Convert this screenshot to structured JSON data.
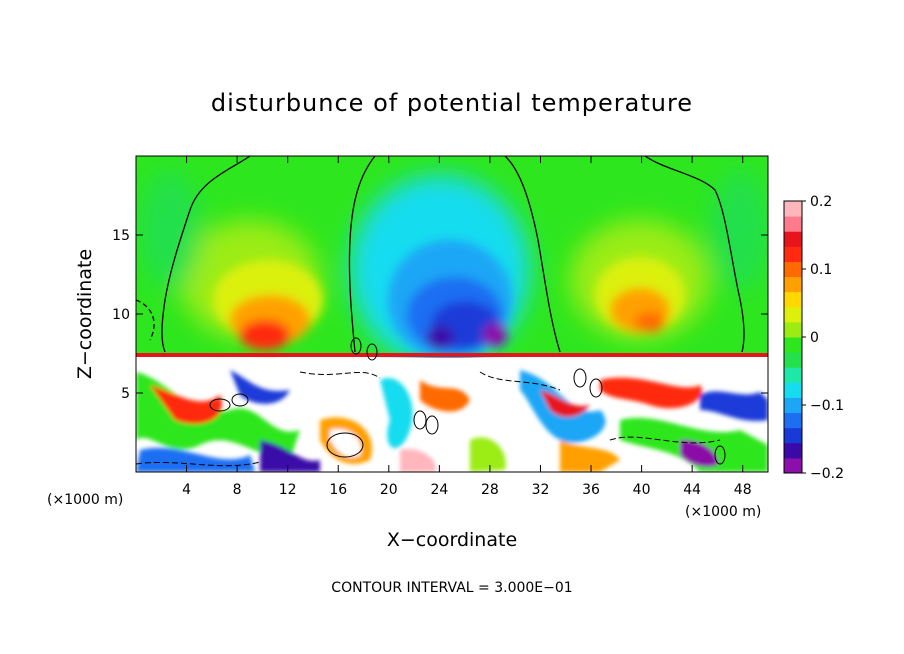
{
  "chart_data": {
    "type": "heatmap",
    "title": "disturbunce of potential temperature",
    "xlabel": "X−coordinate",
    "ylabel": "Z−coordinate",
    "x_unit": "(×1000 m)",
    "z_unit": "(×1000 m)",
    "xlim": [
      0,
      50
    ],
    "ylim": [
      0,
      20
    ],
    "x_ticks": [
      4,
      8,
      12,
      16,
      20,
      24,
      28,
      32,
      36,
      40,
      44,
      48
    ],
    "x_tick_labels": [
      "4",
      "8",
      "12",
      "16",
      "20",
      "24",
      "28",
      "32",
      "36",
      "40",
      "44",
      "48"
    ],
    "y_ticks": [
      5,
      10,
      15
    ],
    "y_tick_labels": [
      "5",
      "10",
      "15"
    ],
    "colorbar": {
      "range": [
        -0.2,
        0.2
      ],
      "ticks": [
        0.2,
        0.1,
        0,
        -0.1,
        -0.2
      ],
      "tick_labels": [
        "0.2",
        "0.1",
        "0",
        "−0.1",
        "−0.2"
      ],
      "colors": [
        "#8b0fa8",
        "#3a0aa8",
        "#1a3ad8",
        "#1e6ef2",
        "#1ea6f6",
        "#16dcf0",
        "#1ee8a8",
        "#24e04c",
        "#2ee61e",
        "#9cec14",
        "#dcf00c",
        "#ffd800",
        "#ffa000",
        "#ff6a00",
        "#ff2a10",
        "#e8141c",
        "#ff7a8c",
        "#ffb6bc"
      ]
    },
    "features": {
      "upper_layer": "smooth fields: warm anomalies (~0.1) near x=8-16 and x=36-44 at z~9-13; cold anomaly (~-0.2) centred x~24-30 at z~8-14",
      "lower_layer": "turbulent small-scale eddies of both signs with saturated values below z~7.5"
    },
    "contour_interval_text": "CONTOUR INTERVAL = 3.000E−01"
  }
}
